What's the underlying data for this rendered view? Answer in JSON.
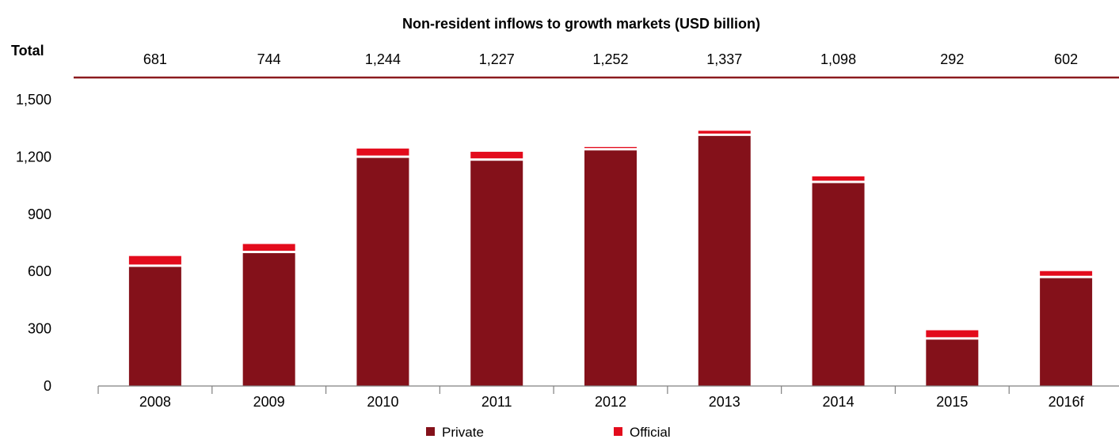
{
  "chart_data": {
    "type": "bar",
    "stacked": true,
    "title": "Non-resident inflows to growth markets (USD billion)",
    "total_label": "Total",
    "categories": [
      "2008",
      "2009",
      "2010",
      "2011",
      "2012",
      "2013",
      "2014",
      "2015",
      "2016f"
    ],
    "totals": [
      "681",
      "744",
      "1,244",
      "1,227",
      "1,252",
      "1,337",
      "1,098",
      "292",
      "602"
    ],
    "series": [
      {
        "name": "Private",
        "color": "#84111a",
        "values": [
          624,
          696,
          1195,
          1180,
          1234,
          1310,
          1063,
          243,
          565
        ]
      },
      {
        "name": "Official",
        "color": "#e30b1c",
        "values": [
          57,
          48,
          49,
          47,
          18,
          27,
          35,
          49,
          37
        ]
      }
    ],
    "y_ticks": [
      "0",
      "300",
      "600",
      "900",
      "1,200",
      "1,500"
    ],
    "ylim": [
      0,
      1500
    ],
    "grid": false,
    "legend_position": "bottom",
    "colors": {
      "rule": "#8b1a1e",
      "axis": "#808080"
    }
  }
}
